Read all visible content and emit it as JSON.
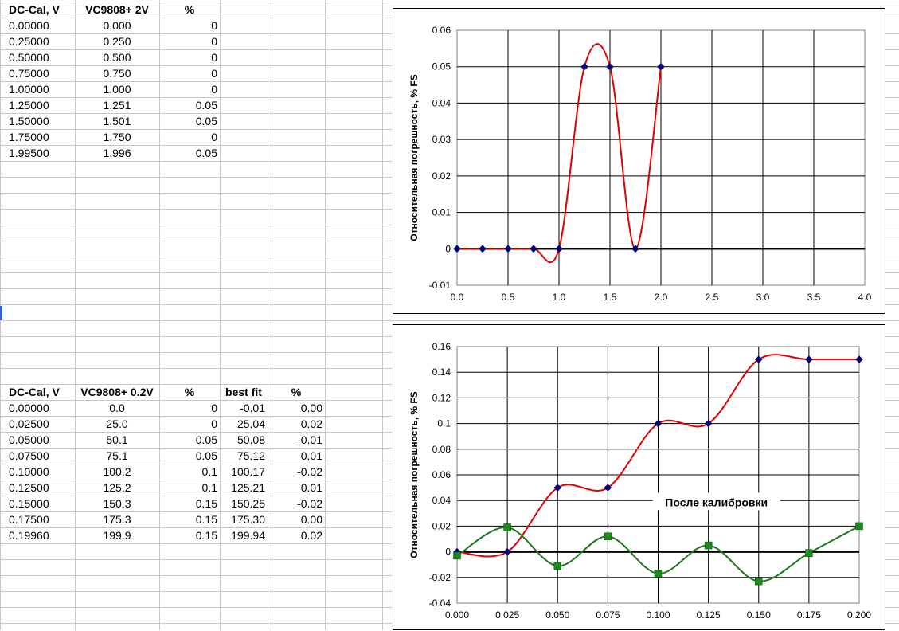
{
  "table1": {
    "headers": [
      "DC-Cal, V",
      "VC9808+ 2V",
      "%"
    ],
    "rows": [
      [
        "0.00000",
        "0.000",
        "0"
      ],
      [
        "0.25000",
        "0.250",
        "0"
      ],
      [
        "0.50000",
        "0.500",
        "0"
      ],
      [
        "0.75000",
        "0.750",
        "0"
      ],
      [
        "1.00000",
        "1.000",
        "0"
      ],
      [
        "1.25000",
        "1.251",
        "0.05"
      ],
      [
        "1.50000",
        "1.501",
        "0.05"
      ],
      [
        "1.75000",
        "1.750",
        "0"
      ],
      [
        "1.99500",
        "1.996",
        "0.05"
      ]
    ]
  },
  "table2": {
    "headers": [
      "DC-Cal, V",
      "VC9808+ 0.2V",
      "%",
      "best fit",
      "%"
    ],
    "rows": [
      [
        "0.00000",
        "0.0",
        "0",
        "-0.01",
        "0.00"
      ],
      [
        "0.02500",
        "25.0",
        "0",
        "25.04",
        "0.02"
      ],
      [
        "0.05000",
        "50.1",
        "0.05",
        "50.08",
        "-0.01"
      ],
      [
        "0.07500",
        "75.1",
        "0.05",
        "75.12",
        "0.01"
      ],
      [
        "0.10000",
        "100.2",
        "0.1",
        "100.17",
        "-0.02"
      ],
      [
        "0.12500",
        "125.2",
        "0.1",
        "125.21",
        "0.01"
      ],
      [
        "0.15000",
        "150.3",
        "0.15",
        "150.25",
        "-0.02"
      ],
      [
        "0.17500",
        "175.3",
        "0.15",
        "175.30",
        "0.00"
      ],
      [
        "0.19960",
        "199.9",
        "0.15",
        "199.94",
        "0.02"
      ]
    ]
  },
  "chart_data": [
    {
      "type": "scatter",
      "title": "",
      "xlabel": "",
      "ylabel": "Относительная погрешность, % FS",
      "xlim": [
        0,
        4
      ],
      "ylim": [
        -0.01,
        0.06
      ],
      "xticks": [
        "0.0",
        "0.5",
        "1.0",
        "1.5",
        "2.0",
        "2.5",
        "3.0",
        "3.5",
        "4.0"
      ],
      "yticks": [
        "-0.01",
        "0",
        "0.01",
        "0.02",
        "0.03",
        "0.04",
        "0.05",
        "0.06"
      ],
      "grid": true,
      "series": [
        {
          "color": "#e00000",
          "marker_color": "#000080",
          "marker": "diamond",
          "x": [
            0,
            0.25,
            0.5,
            0.75,
            1.0,
            1.25,
            1.5,
            1.75,
            2.0
          ],
          "y": [
            0,
            0,
            0,
            0,
            0,
            0.05,
            0.05,
            0,
            0.05
          ]
        }
      ]
    },
    {
      "type": "scatter",
      "title": "",
      "xlabel": "",
      "ylabel": "Относительная погрешность, % FS",
      "xlim": [
        0,
        0.2
      ],
      "ylim": [
        -0.04,
        0.16
      ],
      "xticks": [
        "0.000",
        "0.025",
        "0.050",
        "0.075",
        "0.100",
        "0.125",
        "0.150",
        "0.175",
        "0.200"
      ],
      "yticks": [
        "-0.04",
        "-0.02",
        "0",
        "0.02",
        "0.04",
        "0.06",
        "0.08",
        "0.1",
        "0.12",
        "0.14",
        "0.16"
      ],
      "grid": true,
      "annotation": "После калибровки",
      "series": [
        {
          "color": "#e00000",
          "marker_color": "#000080",
          "marker": "diamond",
          "x": [
            0,
            0.025,
            0.05,
            0.075,
            0.1,
            0.125,
            0.15,
            0.175,
            0.2
          ],
          "y": [
            0,
            0,
            0.05,
            0.05,
            0.1,
            0.1,
            0.15,
            0.15,
            0.15
          ]
        },
        {
          "color": "#1a7a1a",
          "marker_color": "#1a8a1a",
          "marker": "square",
          "x": [
            0,
            0.025,
            0.05,
            0.075,
            0.1,
            0.125,
            0.15,
            0.175,
            0.2
          ],
          "y": [
            -0.003,
            0.019,
            -0.011,
            0.012,
            -0.017,
            0.005,
            -0.023,
            -0.001,
            0.02
          ]
        }
      ]
    }
  ]
}
